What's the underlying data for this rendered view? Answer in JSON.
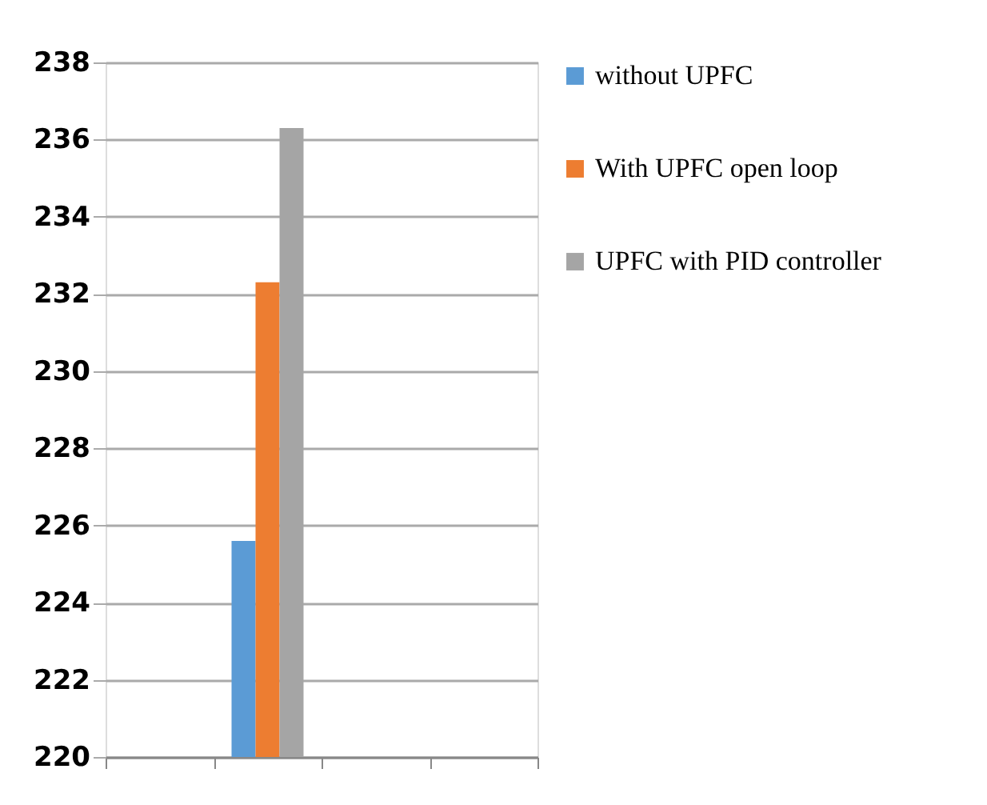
{
  "chart_data": {
    "type": "bar",
    "categories": [
      null,
      null,
      null,
      null
    ],
    "series": [
      {
        "name": "without UPFC",
        "color": "#5b9bd5",
        "values": [
          null,
          225.6,
          null,
          null
        ]
      },
      {
        "name": "With UPFC open loop",
        "color": "#ed7d31",
        "values": [
          null,
          232.3,
          null,
          null
        ]
      },
      {
        "name": "UPFC with PID controller",
        "color": "#a5a5a5",
        "values": [
          null,
          236.3,
          null,
          null
        ]
      }
    ],
    "ylim": [
      220,
      238
    ],
    "yticks": [
      220,
      222,
      224,
      226,
      228,
      230,
      232,
      234,
      236,
      238
    ],
    "grid": "y",
    "legend": "right"
  }
}
